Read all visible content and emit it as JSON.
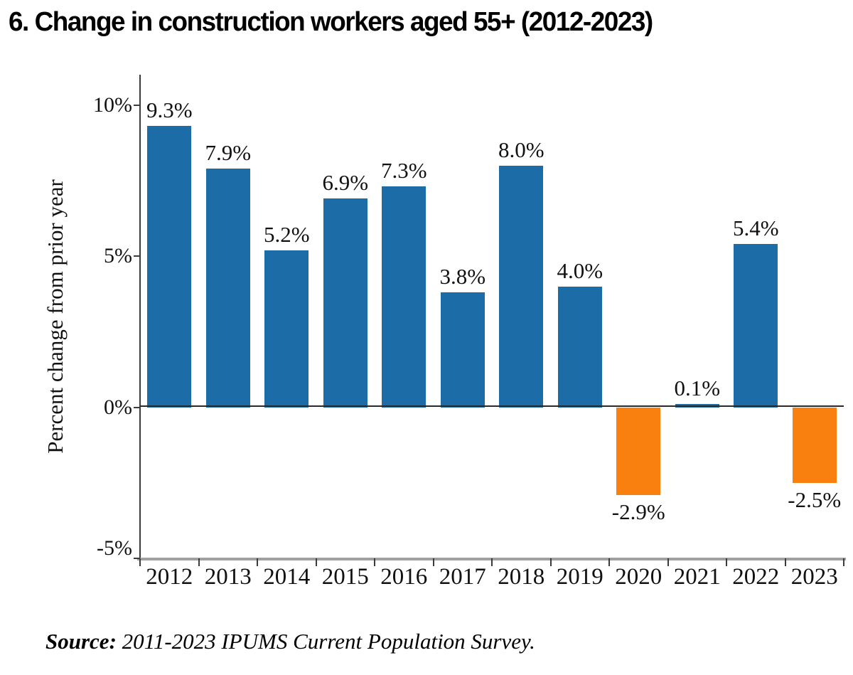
{
  "title": "6. Change in construction workers aged 55+ (2012-2023)",
  "chart_data": {
    "type": "bar",
    "title": "6. Change in construction workers aged 55+ (2012-2023)",
    "categories": [
      "2012",
      "2013",
      "2014",
      "2015",
      "2016",
      "2017",
      "2018",
      "2019",
      "2020",
      "2021",
      "2022",
      "2023"
    ],
    "values": [
      9.3,
      7.9,
      5.2,
      6.9,
      7.3,
      3.8,
      8.0,
      4.0,
      -2.9,
      0.1,
      5.4,
      -2.5
    ],
    "bar_labels": [
      "9.3%",
      "7.9%",
      "5.2%",
      "6.9%",
      "7.3%",
      "3.8%",
      "8.0%",
      "4.0%",
      "-2.9%",
      "0.1%",
      "5.4%",
      "-2.5%"
    ],
    "xlabel": "",
    "ylabel": "Percent change from prior year",
    "ylim": [
      -5,
      11
    ],
    "yticks": [
      {
        "value": 10,
        "label": "10%"
      },
      {
        "value": 5,
        "label": "5%"
      },
      {
        "value": 0,
        "label": "0%"
      },
      {
        "value": -5,
        "label": "-5%"
      }
    ],
    "grid": false,
    "legend": null,
    "colors": {
      "positive": "#1c6ca8",
      "negative": "#f9800e",
      "axis": "#3c3c3c",
      "baseline": "#a0a0a0",
      "zero_line": "#2a2a2a"
    }
  },
  "source": {
    "label": "Source:",
    "text": " 2011-2023 IPUMS Current Population Survey."
  }
}
